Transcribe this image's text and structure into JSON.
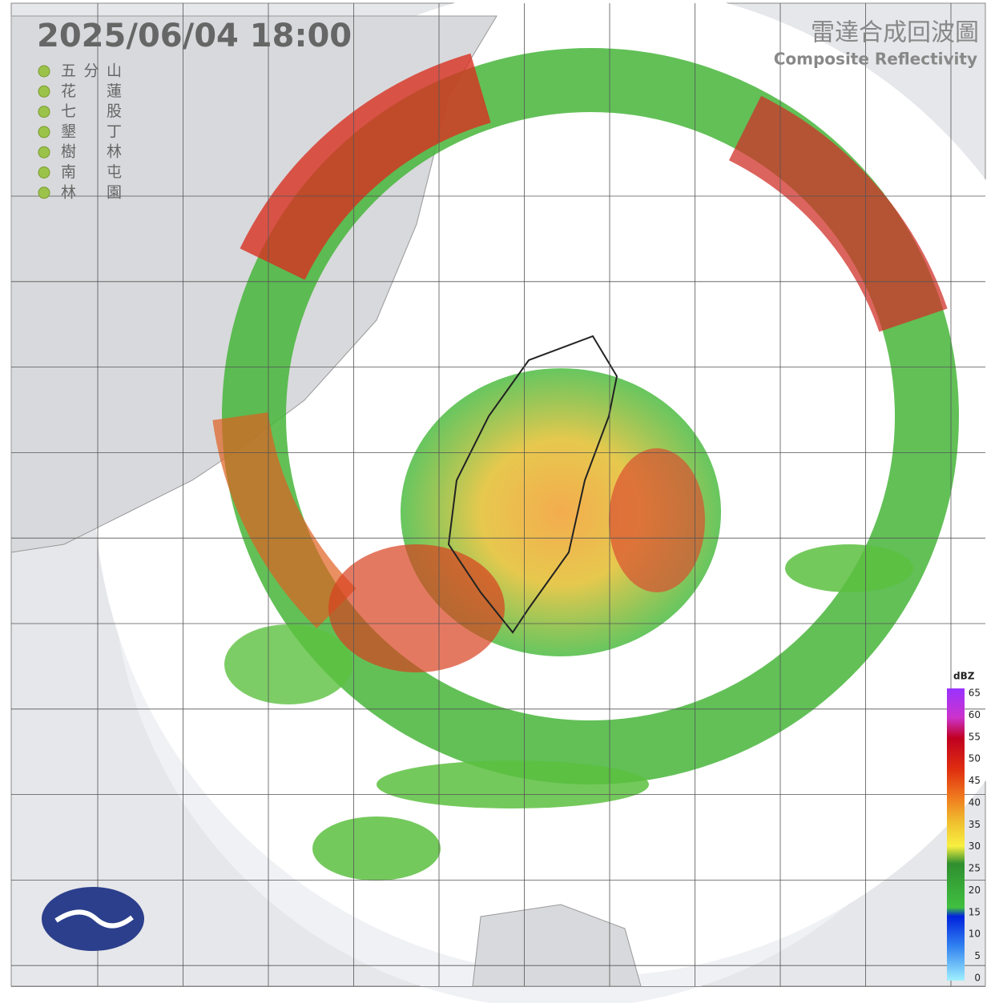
{
  "header": {
    "timestamp": "2025/06/04  18:00",
    "title": "雷達合成回波圖",
    "subtitle": "Composite Reflectivity"
  },
  "stations": [
    "五分山",
    "花蓮",
    "七股",
    "墾丁",
    "樹林",
    "南屯",
    "林園"
  ],
  "legend": {
    "unit": "dBZ",
    "ticks": [
      65,
      60,
      55,
      50,
      45,
      40,
      35,
      30,
      25,
      20,
      15,
      10,
      5,
      0
    ]
  }
}
